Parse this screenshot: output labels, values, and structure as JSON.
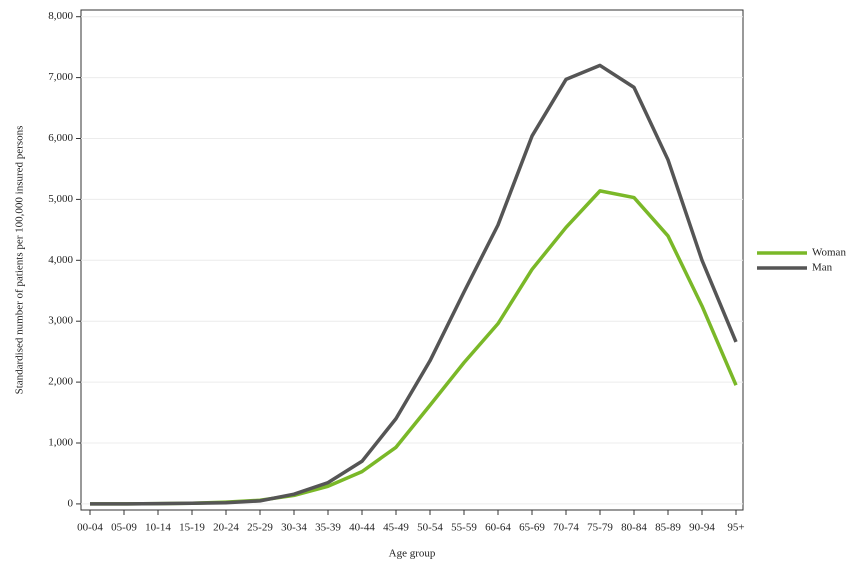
{
  "chart_data": {
    "type": "line",
    "x_label": "Age group",
    "y_label": "Standardised number of patients per 100,000 insured persons",
    "categories": [
      "00-04",
      "05-09",
      "10-14",
      "15-19",
      "20-24",
      "25-29",
      "30-34",
      "35-39",
      "40-44",
      "45-49",
      "50-54",
      "55-59",
      "60-64",
      "65-69",
      "70-74",
      "75-79",
      "80-84",
      "85-89",
      "90-94",
      "95+"
    ],
    "series": [
      {
        "name": "Woman",
        "color": "#7ab828",
        "values": [
          0,
          0,
          5,
          10,
          30,
          60,
          140,
          290,
          530,
          930,
          1620,
          2320,
          2960,
          3850,
          4540,
          5140,
          5030,
          4400,
          3250,
          1950
        ]
      },
      {
        "name": "Man",
        "color": "#555555",
        "values": [
          0,
          0,
          5,
          10,
          20,
          50,
          160,
          350,
          700,
          1400,
          2350,
          3480,
          4580,
          6040,
          6970,
          7200,
          6840,
          5650,
          4000,
          2660
        ]
      }
    ],
    "ylim": [
      -100,
      8110
    ],
    "yticks": [
      0,
      {
        "value": 1000,
        "label": "1,000"
      },
      {
        "value": 2000,
        "label": "2,000"
      },
      {
        "value": 3000,
        "label": "3,000"
      },
      {
        "value": 4000,
        "label": "4,000"
      },
      {
        "value": 5000,
        "label": "5,000"
      },
      {
        "value": 6000,
        "label": "6,000"
      },
      {
        "value": 7000,
        "label": "7,000"
      },
      {
        "value": 8000,
        "label": "8,000"
      }
    ],
    "grid": true,
    "legend": "right"
  }
}
